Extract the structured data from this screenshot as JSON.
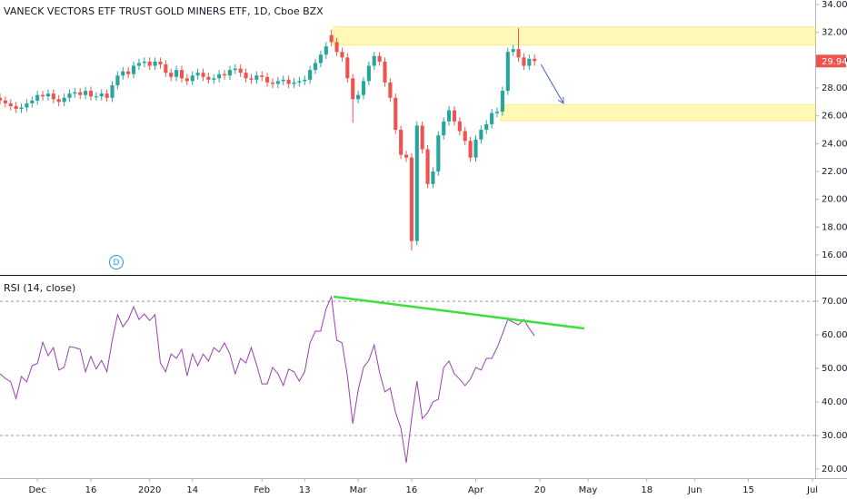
{
  "chart_data": [
    {
      "type": "candlestick",
      "title": "VANECK VECTORS ETF TRUST GOLD MINERS ETF, 1D, Cboe BZX",
      "event_marker": "D",
      "up_color": "#26a69a",
      "down_color": "#ef5350",
      "xlim": [
        0,
        152.5
      ],
      "ylim": [
        14.63,
        34.33
      ],
      "yticks": [
        {
          "value": 16,
          "label": "16.00"
        },
        {
          "value": 18,
          "label": "18.00"
        },
        {
          "value": 20,
          "label": "20.00"
        },
        {
          "value": 22,
          "label": "22.00"
        },
        {
          "value": 24,
          "label": "24.00"
        },
        {
          "value": 26,
          "label": "26.00"
        },
        {
          "value": 28,
          "label": "28.00"
        },
        {
          "value": 30,
          "label": "30.00"
        },
        {
          "value": 32,
          "label": "32.00"
        },
        {
          "value": 34,
          "label": "34.00"
        }
      ],
      "x": [
        0,
        1,
        2,
        3,
        4,
        5,
        6,
        7,
        8,
        9,
        10,
        11,
        12,
        13,
        14,
        15,
        16,
        17,
        18,
        19,
        20,
        21,
        22,
        23,
        24,
        25,
        26,
        27,
        28,
        29,
        30,
        31,
        32,
        33,
        34,
        35,
        36,
        37,
        38,
        39,
        40,
        41,
        42,
        43,
        44,
        45,
        46,
        47,
        48,
        49,
        50,
        51,
        52,
        53,
        54,
        55,
        56,
        57,
        58,
        59,
        60,
        61,
        62,
        63,
        64,
        65,
        66,
        67,
        68,
        69,
        70,
        71,
        72,
        73,
        74,
        75,
        76,
        77,
        78,
        79,
        80,
        81,
        82,
        83,
        84,
        85,
        86,
        87,
        88,
        89,
        90,
        91,
        92,
        93,
        94,
        95,
        96,
        97,
        98,
        99,
        100
      ],
      "open": [
        27.3,
        27.1,
        26.9,
        26.7,
        26.5,
        26.6,
        26.9,
        27.1,
        27.5,
        27.4,
        27.6,
        27.2,
        27.0,
        27.3,
        27.6,
        27.7,
        27.5,
        27.8,
        27.4,
        27.4,
        27.6,
        27.3,
        28.2,
        28.9,
        29.2,
        29.0,
        29.6,
        29.8,
        29.9,
        29.6,
        29.9,
        29.7,
        29.1,
        28.8,
        29.3,
        28.7,
        28.5,
        28.9,
        29.1,
        28.8,
        28.6,
        28.7,
        29.0,
        28.9,
        29.3,
        29.4,
        29.1,
        28.7,
        28.6,
        28.9,
        28.8,
        28.4,
        28.3,
        28.5,
        28.6,
        28.3,
        28.4,
        28.5,
        28.6,
        29.3,
        29.8,
        30.4,
        31.8,
        31.3,
        30.6,
        30.2,
        28.7,
        27.2,
        27.5,
        28.5,
        29.6,
        30.3,
        29.9,
        28.4,
        27.3,
        25.0,
        23.2,
        23.0,
        17.0,
        25.3,
        23.6,
        21.1,
        22.0,
        24.6,
        25.6,
        26.4,
        25.6,
        24.9,
        24.2,
        23.0,
        24.3,
        25.0,
        25.4,
        26.2,
        26.3,
        27.8,
        30.6,
        30.8,
        30.2,
        29.6,
        30.1
      ],
      "high": [
        27.6,
        27.4,
        27.2,
        27.0,
        26.9,
        27.2,
        27.4,
        27.8,
        27.8,
        27.9,
        27.9,
        27.5,
        27.6,
        27.9,
        28.0,
        28.0,
        28.1,
        28.1,
        27.7,
        27.9,
        27.9,
        28.5,
        29.2,
        29.5,
        29.5,
        29.9,
        30.1,
        30.2,
        30.2,
        30.2,
        30.2,
        30.0,
        29.4,
        29.6,
        29.6,
        29.0,
        29.2,
        29.4,
        29.4,
        29.1,
        29.0,
        29.3,
        29.3,
        29.6,
        29.7,
        29.7,
        29.4,
        29.0,
        29.2,
        29.2,
        29.1,
        28.7,
        28.8,
        28.9,
        28.9,
        28.7,
        28.8,
        28.9,
        29.6,
        30.1,
        30.7,
        31.3,
        32.2,
        31.6,
        30.9,
        30.5,
        29.0,
        27.8,
        28.8,
        29.9,
        30.6,
        30.6,
        30.2,
        28.7,
        27.6,
        25.3,
        23.5,
        23.3,
        25.6,
        25.6,
        23.9,
        22.3,
        24.9,
        25.9,
        26.7,
        26.7,
        25.9,
        25.2,
        24.5,
        24.6,
        25.3,
        25.7,
        26.5,
        26.6,
        28.1,
        30.9,
        31.1,
        32.3,
        30.5,
        30.4,
        30.4
      ],
      "low": [
        26.8,
        26.6,
        26.4,
        26.2,
        26.2,
        26.3,
        26.6,
        26.8,
        27.1,
        27.1,
        26.9,
        26.7,
        26.7,
        27.0,
        27.3,
        27.2,
        27.2,
        27.1,
        27.1,
        27.1,
        27.0,
        27.0,
        27.9,
        28.6,
        28.7,
        28.7,
        29.3,
        29.5,
        29.3,
        29.3,
        29.4,
        28.8,
        28.5,
        28.5,
        28.4,
        28.2,
        28.2,
        28.6,
        28.5,
        28.3,
        28.3,
        28.4,
        28.6,
        28.6,
        29.0,
        28.8,
        28.4,
        28.3,
        28.3,
        28.5,
        28.1,
        28.0,
        28.0,
        28.2,
        28.0,
        28.0,
        28.1,
        28.2,
        28.3,
        29.0,
        29.5,
        30.1,
        31.0,
        30.3,
        29.9,
        28.4,
        25.5,
        26.9,
        27.2,
        28.2,
        29.3,
        29.6,
        28.1,
        27.0,
        24.7,
        22.9,
        22.7,
        16.3,
        16.7,
        23.3,
        20.8,
        20.8,
        21.7,
        24.3,
        25.3,
        25.3,
        24.6,
        23.9,
        22.7,
        22.7,
        24.0,
        24.7,
        25.1,
        25.9,
        26.0,
        27.5,
        30.3,
        29.9,
        29.3,
        29.3,
        29.6
      ],
      "close": [
        27.1,
        26.9,
        26.7,
        26.5,
        26.6,
        26.9,
        27.1,
        27.5,
        27.4,
        27.6,
        27.2,
        27.0,
        27.3,
        27.6,
        27.7,
        27.5,
        27.8,
        27.4,
        27.4,
        27.6,
        27.3,
        28.2,
        28.9,
        29.2,
        29.0,
        29.6,
        29.8,
        29.9,
        29.6,
        29.9,
        29.7,
        29.1,
        28.8,
        29.3,
        28.7,
        28.5,
        28.9,
        29.1,
        28.8,
        28.6,
        28.7,
        29.0,
        28.9,
        29.3,
        29.4,
        29.1,
        28.7,
        28.6,
        28.9,
        28.8,
        28.4,
        28.3,
        28.5,
        28.6,
        28.3,
        28.4,
        28.5,
        28.6,
        29.3,
        29.8,
        30.4,
        31.0,
        31.3,
        30.6,
        30.2,
        28.7,
        27.2,
        27.5,
        28.5,
        29.6,
        30.3,
        29.9,
        28.4,
        27.3,
        25.0,
        23.2,
        23.0,
        17.0,
        25.3,
        23.6,
        21.1,
        22.0,
        24.6,
        25.6,
        26.4,
        25.6,
        24.9,
        24.2,
        23.0,
        24.3,
        25.0,
        25.4,
        26.2,
        26.3,
        27.8,
        30.6,
        30.8,
        30.2,
        29.6,
        30.1,
        29.94
      ],
      "zones": [
        {
          "x0": 62.4,
          "y": [
            31.1,
            32.4
          ]
        },
        {
          "x0": 93.7,
          "y": [
            25.65,
            26.8
          ]
        }
      ],
      "zone_color": "#fff59d",
      "arrow": {
        "x": [
          101.2,
          105.4
        ],
        "y": [
          29.7,
          26.9
        ],
        "color": "#4a5bd9"
      }
    },
    {
      "type": "line",
      "title": "RSI (14, close)",
      "color": "#9c3fb0",
      "xlim": [
        0,
        152.5
      ],
      "ylim": [
        17.3,
        77.6
      ],
      "yticks": [
        {
          "value": 20,
          "label": "20.00"
        },
        {
          "value": 30,
          "label": "30.00"
        },
        {
          "value": 40,
          "label": "40.00"
        },
        {
          "value": 50,
          "label": "50.00"
        },
        {
          "value": 60,
          "label": "60.00"
        },
        {
          "value": 70,
          "label": "70.00"
        }
      ],
      "bands": [
        70,
        30
      ],
      "xticks": [
        {
          "value": 7,
          "label": "Dec"
        },
        {
          "value": 17,
          "label": "16"
        },
        {
          "value": 28,
          "label": "2020"
        },
        {
          "value": 36,
          "label": "14"
        },
        {
          "value": 49,
          "label": "Feb"
        },
        {
          "value": 57,
          "label": "13"
        },
        {
          "value": 67,
          "label": "Mar"
        },
        {
          "value": 77,
          "label": "16"
        },
        {
          "value": 89,
          "label": "Apr"
        },
        {
          "value": 101,
          "label": "20"
        },
        {
          "value": 110,
          "label": "May"
        },
        {
          "value": 121,
          "label": "18"
        },
        {
          "value": 130,
          "label": "Jun"
        },
        {
          "value": 140,
          "label": "15"
        },
        {
          "value": 152,
          "label": "Jul"
        }
      ],
      "x": [
        0,
        1,
        2,
        3,
        4,
        5,
        6,
        7,
        8,
        9,
        10,
        11,
        12,
        13,
        14,
        15,
        16,
        17,
        18,
        19,
        20,
        21,
        22,
        23,
        24,
        25,
        26,
        27,
        28,
        29,
        30,
        31,
        32,
        33,
        34,
        35,
        36,
        37,
        38,
        39,
        40,
        41,
        42,
        43,
        44,
        45,
        46,
        47,
        48,
        49,
        50,
        51,
        52,
        53,
        54,
        55,
        56,
        57,
        58,
        59,
        60,
        61,
        62,
        63,
        64,
        65,
        66,
        67,
        68,
        69,
        70,
        71,
        72,
        73,
        74,
        75,
        76,
        77,
        78,
        79,
        80,
        81,
        82,
        83,
        84,
        85,
        86,
        87,
        88,
        89,
        90,
        91,
        92,
        93,
        94,
        95,
        96,
        97,
        98,
        99,
        100
      ],
      "values": [
        48.4,
        47,
        46,
        41,
        47.6,
        46,
        50.8,
        51.5,
        57.8,
        53.8,
        56.2,
        49.5,
        50.3,
        56.5,
        56.2,
        55.7,
        49,
        53.6,
        49.8,
        52.4,
        49,
        58.4,
        66,
        62.4,
        64.6,
        68.4,
        64.6,
        66.2,
        64.3,
        66,
        51.6,
        49,
        54.3,
        53,
        55.7,
        47.8,
        54.3,
        50.8,
        54.3,
        52.2,
        56.2,
        54.9,
        57.6,
        54.3,
        48.4,
        53,
        51.6,
        56.2,
        51.1,
        45.4,
        45.4,
        50.3,
        48.4,
        44.9,
        49.8,
        49,
        46.2,
        49,
        57.6,
        61.1,
        61.1,
        67.8,
        71.4,
        58.4,
        57.6,
        47.6,
        33.5,
        43.5,
        50.3,
        52.4,
        57,
        48.9,
        43,
        44.1,
        36.8,
        32.2,
        21.9,
        35,
        46.2,
        35,
        36.8,
        40,
        40.8,
        50.3,
        52.2,
        48.4,
        46.8,
        44.9,
        46.8,
        50.3,
        49.5,
        53,
        53,
        56.2,
        60.3,
        64.6,
        63.8,
        63,
        64.6,
        61.9,
        59.7
      ],
      "trendline": {
        "x": [
          62.4,
          109.3
        ],
        "y": [
          71.4,
          61.9
        ],
        "color": "#3be03b"
      }
    }
  ]
}
